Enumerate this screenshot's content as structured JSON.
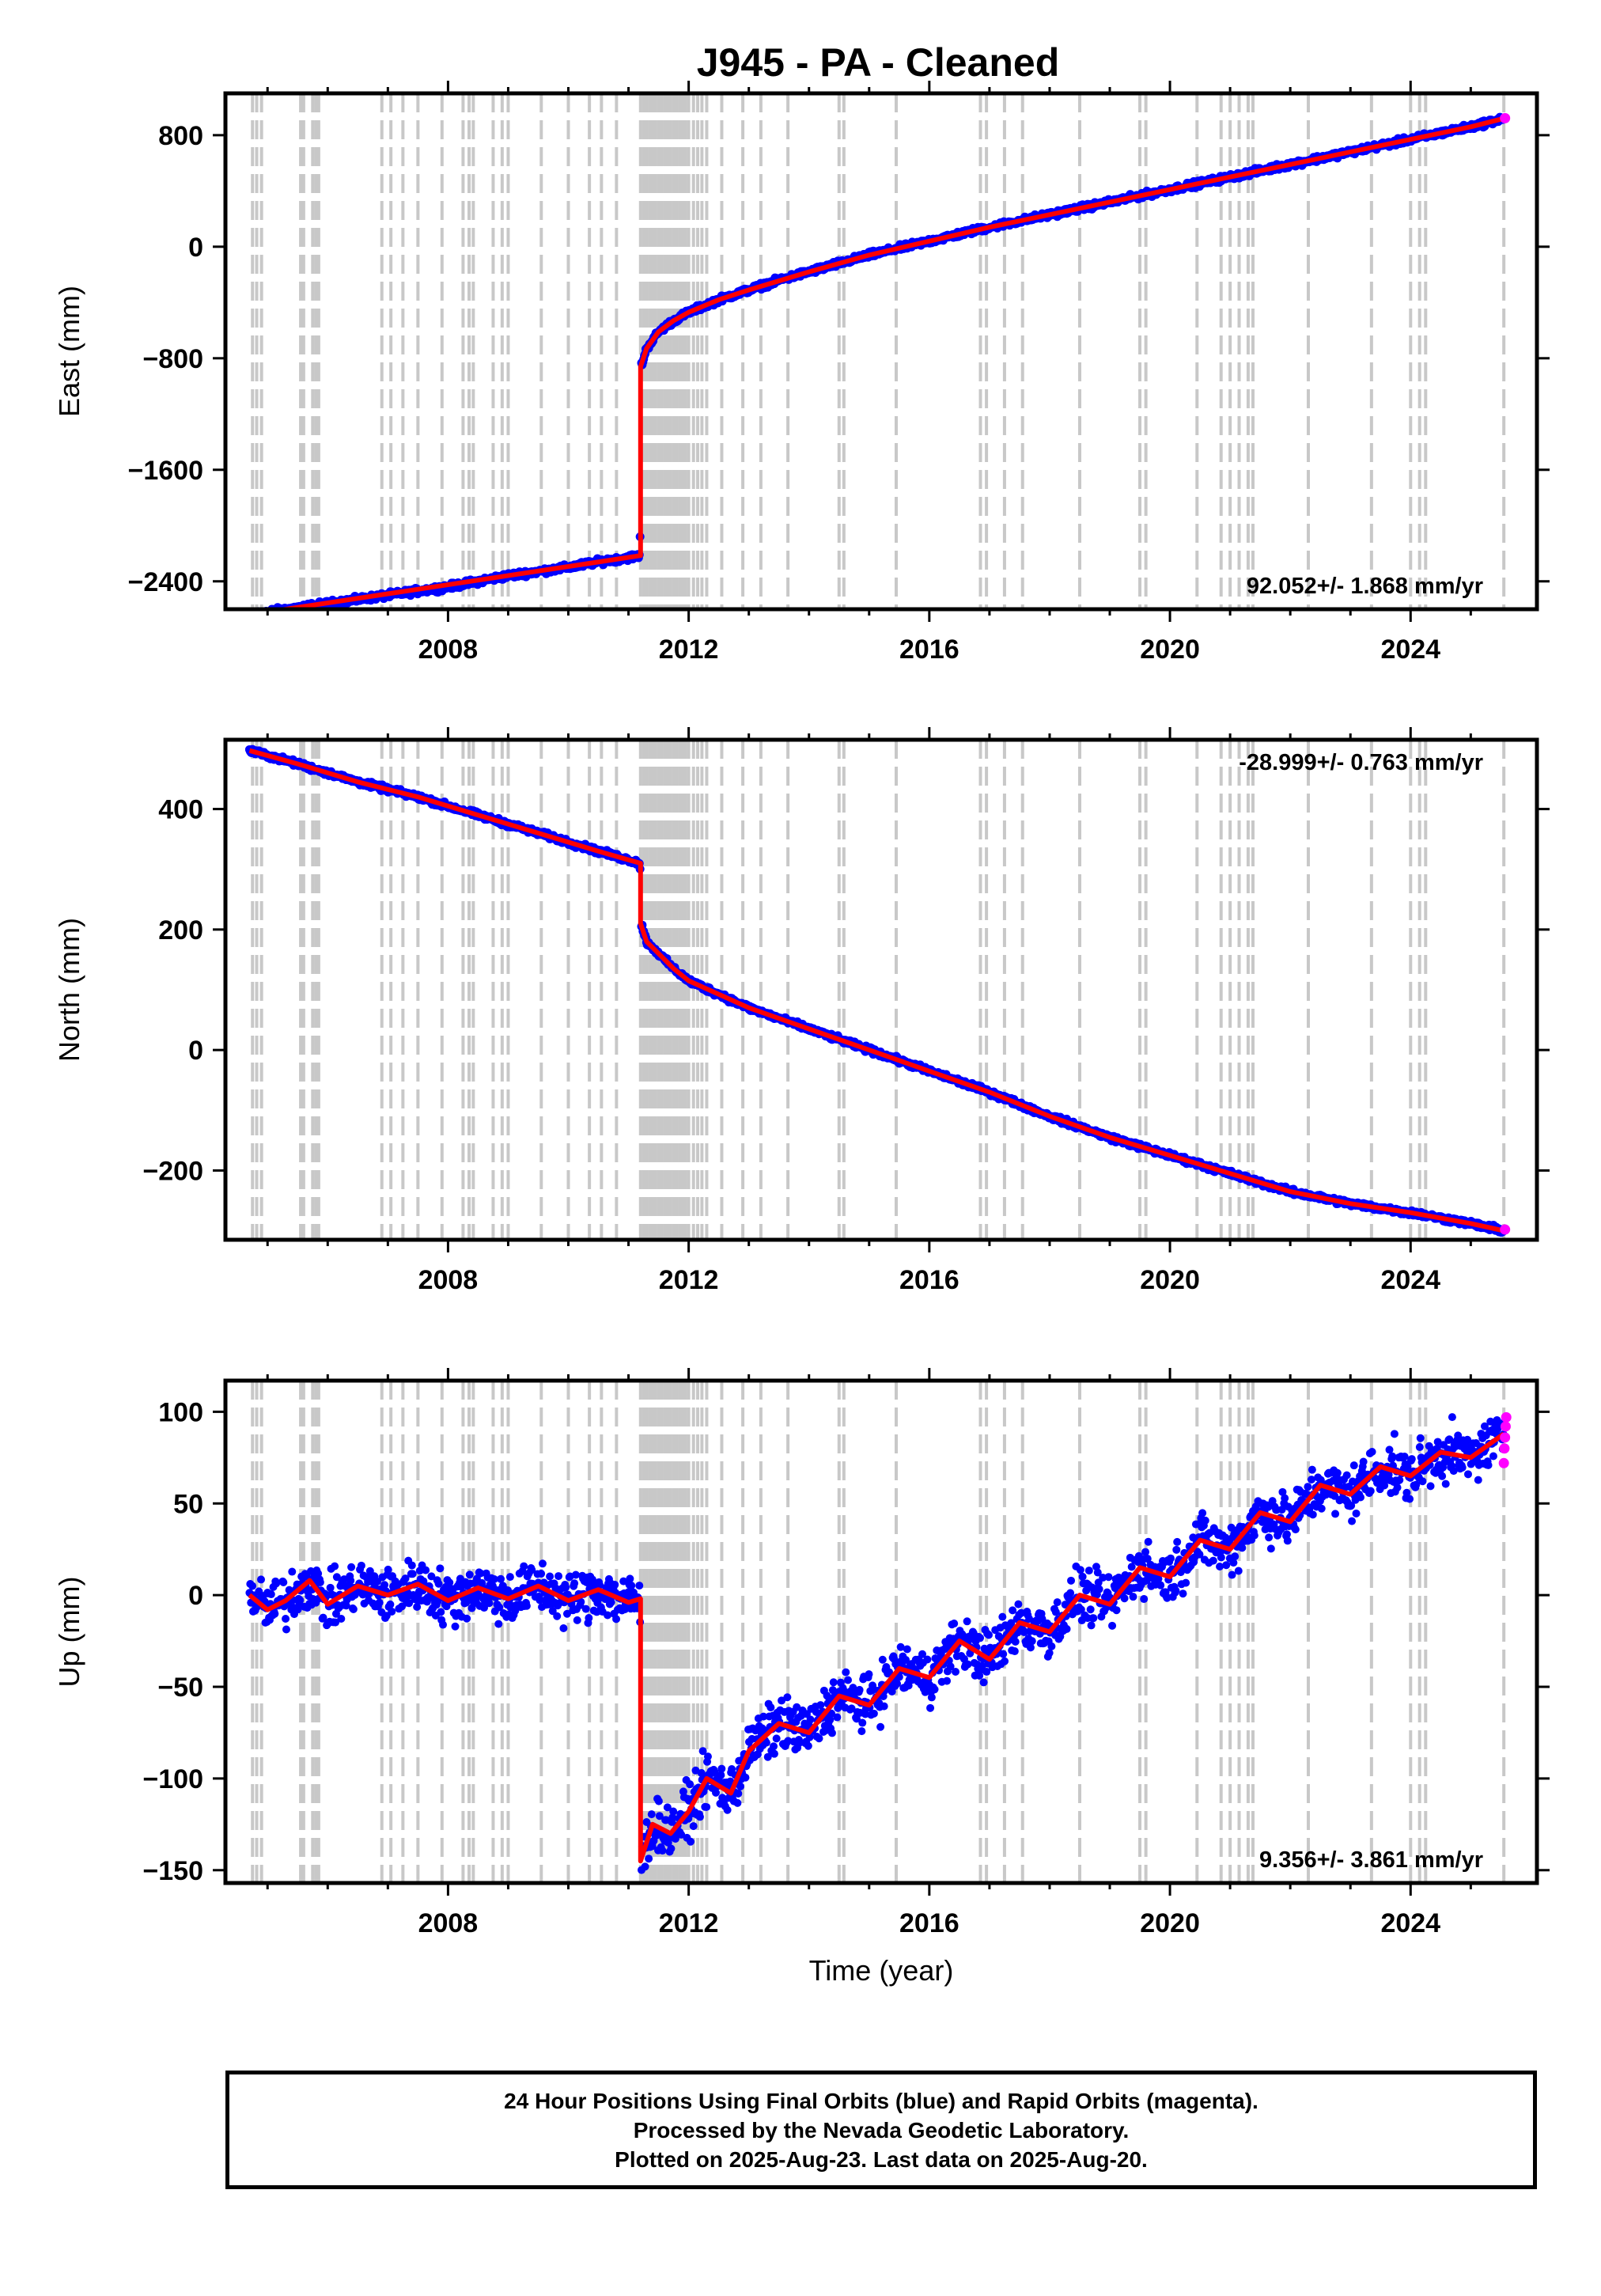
{
  "page": {
    "title": "J945  - PA - Cleaned"
  },
  "colors": {
    "final_orbits": "#0000ff",
    "rapid_orbits": "#ff00ff",
    "model_line": "#ff0000",
    "event_lines": "#c8c8c8",
    "frame": "#000000"
  },
  "chart_data": [
    {
      "type": "scatter",
      "panel": "east",
      "ylabel": "East (mm)",
      "xlabel": "",
      "xlim": [
        2004.3,
        2026.1
      ],
      "ylim": [
        -2600,
        1100
      ],
      "xticks": [
        2008,
        2012,
        2016,
        2020,
        2024
      ],
      "yticks": [
        -2400,
        -1600,
        -800,
        0,
        800
      ],
      "ytick_labels": [
        "−2400",
        "−1600",
        "−800",
        "0",
        "800"
      ],
      "rate_label": "92.052+/- 1.868 mm/yr",
      "rate_position": "bottom-right",
      "grid": false,
      "series": [
        {
          "style": "points",
          "color_key": "final_orbits",
          "x": [
            2004.7,
            2005.0,
            2005.5,
            2006.0,
            2006.5,
            2007.0,
            2007.5,
            2008.0,
            2008.5,
            2009.0,
            2009.5,
            2010.0,
            2010.5,
            2011.0,
            2011.19,
            2011.21,
            2011.3,
            2011.5,
            2011.75,
            2012.0,
            2012.5,
            2013.0,
            2013.5,
            2014.0,
            2015.0,
            2016.0,
            2017.0,
            2018.0,
            2019.0,
            2020.0,
            2021.0,
            2022.0,
            2023.0,
            2024.0,
            2025.0,
            2025.55
          ],
          "y": [
            -2640,
            -2620,
            -2590,
            -2560,
            -2530,
            -2500,
            -2470,
            -2440,
            -2400,
            -2360,
            -2330,
            -2300,
            -2260,
            -2230,
            -2215,
            -860,
            -730,
            -610,
            -530,
            -470,
            -380,
            -310,
            -240,
            -180,
            -60,
            40,
            140,
            230,
            320,
            410,
            500,
            590,
            680,
            770,
            860,
            920
          ]
        },
        {
          "style": "line",
          "color_key": "model_line",
          "x": [
            2004.7,
            2011.2,
            2011.2,
            2011.3,
            2011.5,
            2011.75,
            2012.0,
            2012.5,
            2013.0,
            2014.0,
            2015.0,
            2016.0,
            2017.0,
            2018.0,
            2019.0,
            2020.0,
            2021.0,
            2022.0,
            2023.0,
            2024.0,
            2025.0,
            2025.55
          ],
          "y": [
            -2640,
            -2215,
            -860,
            -730,
            -610,
            -530,
            -470,
            -380,
            -310,
            -180,
            -60,
            40,
            140,
            230,
            320,
            410,
            500,
            590,
            680,
            770,
            860,
            920
          ]
        },
        {
          "style": "points",
          "color_key": "rapid_orbits",
          "x": [
            2025.57
          ],
          "y": [
            922
          ]
        }
      ]
    },
    {
      "type": "scatter",
      "panel": "north",
      "ylabel": "North (mm)",
      "xlabel": "",
      "xlim": [
        2004.3,
        2026.1
      ],
      "ylim": [
        -315,
        515
      ],
      "xticks": [
        2008,
        2012,
        2016,
        2020,
        2024
      ],
      "yticks": [
        -200,
        0,
        200,
        400
      ],
      "ytick_labels": [
        "−200",
        "0",
        "200",
        "400"
      ],
      "rate_label": "-28.999+/- 0.763 mm/yr",
      "rate_position": "top-right",
      "grid": false,
      "series": [
        {
          "style": "points",
          "color_key": "final_orbits",
          "x": [
            2004.7,
            2005.5,
            2006.5,
            2007.5,
            2008.5,
            2009.5,
            2010.5,
            2011.19,
            2011.21,
            2011.3,
            2011.5,
            2011.75,
            2012.0,
            2013.0,
            2014.0,
            2015.0,
            2016.0,
            2017.0,
            2018.0,
            2019.0,
            2020.0,
            2021.0,
            2022.0,
            2023.0,
            2024.0,
            2025.0,
            2025.55
          ],
          "y": [
            497,
            475,
            445,
            420,
            390,
            360,
            330,
            310,
            210,
            180,
            160,
            135,
            115,
            70,
            35,
            0,
            -35,
            -70,
            -110,
            -145,
            -175,
            -205,
            -235,
            -255,
            -270,
            -288,
            -300
          ]
        },
        {
          "style": "line",
          "color_key": "model_line",
          "x": [
            2004.7,
            2005.5,
            2006.5,
            2007.5,
            2008.5,
            2009.5,
            2010.5,
            2011.2,
            2011.2,
            2011.3,
            2011.5,
            2011.75,
            2012.0,
            2013.0,
            2014.0,
            2015.0,
            2016.0,
            2017.0,
            2018.0,
            2019.0,
            2020.0,
            2021.0,
            2022.0,
            2023.0,
            2024.0,
            2025.0,
            2025.55
          ],
          "y": [
            497,
            475,
            445,
            420,
            390,
            360,
            330,
            310,
            210,
            180,
            160,
            135,
            115,
            70,
            35,
            0,
            -35,
            -70,
            -110,
            -145,
            -175,
            -205,
            -235,
            -255,
            -270,
            -288,
            -300
          ]
        },
        {
          "style": "points",
          "color_key": "rapid_orbits",
          "x": [
            2025.57
          ],
          "y": [
            -298
          ]
        }
      ]
    },
    {
      "type": "scatter",
      "panel": "up",
      "ylabel": "Up (mm)",
      "xlabel": "Time (year)",
      "xlim": [
        2004.3,
        2026.1
      ],
      "ylim": [
        -157,
        117
      ],
      "xticks": [
        2008,
        2012,
        2016,
        2020,
        2024
      ],
      "yticks": [
        -150,
        -100,
        -50,
        0,
        50,
        100
      ],
      "ytick_labels": [
        "−150",
        "−100",
        "−50",
        "0",
        "50",
        "100"
      ],
      "rate_label": "9.356+/- 3.861 mm/yr",
      "rate_position": "bottom-right",
      "grid": false,
      "series": [
        {
          "style": "points",
          "color_key": "final_orbits",
          "x": [
            2004.7,
            2005.0,
            2005.3,
            2005.7,
            2006.0,
            2006.5,
            2007.0,
            2007.5,
            2008.0,
            2008.5,
            2009.0,
            2009.5,
            2010.0,
            2010.5,
            2011.0,
            2011.19,
            2011.21,
            2011.4,
            2011.7,
            2012.0,
            2012.3,
            2012.7,
            2013.0,
            2013.5,
            2014.0,
            2014.5,
            2015.0,
            2015.5,
            2016.0,
            2016.5,
            2017.0,
            2017.5,
            2018.0,
            2018.5,
            2019.0,
            2019.5,
            2020.0,
            2020.5,
            2021.0,
            2021.5,
            2022.0,
            2022.5,
            2023.0,
            2023.5,
            2024.0,
            2024.5,
            2025.0,
            2025.55
          ],
          "y": [
            0,
            -8,
            -3,
            8,
            -5,
            5,
            0,
            6,
            -3,
            4,
            -2,
            5,
            -3,
            3,
            -4,
            -2,
            -145,
            -125,
            -130,
            -118,
            -100,
            -108,
            -85,
            -70,
            -75,
            -55,
            -60,
            -40,
            -45,
            -25,
            -35,
            -15,
            -20,
            0,
            -5,
            15,
            10,
            30,
            25,
            45,
            40,
            60,
            55,
            70,
            65,
            78,
            75,
            88
          ]
        },
        {
          "style": "line",
          "color_key": "model_line",
          "x": [
            2004.7,
            2005.0,
            2005.3,
            2005.7,
            2006.0,
            2006.5,
            2007.0,
            2007.5,
            2008.0,
            2008.5,
            2009.0,
            2009.5,
            2010.0,
            2010.5,
            2011.0,
            2011.2,
            2011.2,
            2011.4,
            2011.7,
            2012.0,
            2012.3,
            2012.7,
            2013.0,
            2013.5,
            2014.0,
            2014.5,
            2015.0,
            2015.5,
            2016.0,
            2016.5,
            2017.0,
            2017.5,
            2018.0,
            2018.5,
            2019.0,
            2019.5,
            2020.0,
            2020.5,
            2021.0,
            2021.5,
            2022.0,
            2022.5,
            2023.0,
            2023.5,
            2024.0,
            2024.5,
            2025.0,
            2025.55
          ],
          "y": [
            0,
            -8,
            -3,
            8,
            -5,
            5,
            0,
            6,
            -3,
            4,
            -2,
            5,
            -3,
            3,
            -4,
            -2,
            -145,
            -125,
            -130,
            -118,
            -100,
            -108,
            -85,
            -70,
            -75,
            -55,
            -60,
            -40,
            -45,
            -25,
            -35,
            -15,
            -20,
            0,
            -5,
            15,
            10,
            30,
            25,
            45,
            40,
            60,
            55,
            70,
            65,
            78,
            75,
            88
          ]
        },
        {
          "style": "points",
          "color_key": "rapid_orbits",
          "x": [
            2025.55,
            2025.56,
            2025.57,
            2025.58,
            2025.59
          ],
          "y": [
            72,
            80,
            86,
            92,
            97
          ]
        }
      ]
    }
  ],
  "event_lines": [
    2004.75,
    2004.82,
    2004.9,
    2005.55,
    2005.6,
    2005.75,
    2005.8,
    2005.85,
    2006.9,
    2007.05,
    2007.25,
    2007.5,
    2007.9,
    2008.25,
    2008.35,
    2008.42,
    2008.75,
    2008.9,
    2009.0,
    2009.55,
    2010.0,
    2010.35,
    2010.55,
    2010.8,
    2011.2,
    2011.25,
    2011.3,
    2011.35,
    2011.4,
    2011.45,
    2011.5,
    2011.55,
    2011.6,
    2011.65,
    2011.7,
    2011.75,
    2011.8,
    2011.85,
    2011.9,
    2011.95,
    2012.0,
    2012.08,
    2012.15,
    2012.22,
    2012.3,
    2012.55,
    2012.9,
    2013.2,
    2013.65,
    2014.5,
    2014.58,
    2015.45,
    2016.85,
    2016.95,
    2017.25,
    2017.55,
    2018.5,
    2019.5,
    2019.6,
    2020.45,
    2020.85,
    2021.0,
    2021.15,
    2021.3,
    2021.38,
    2022.3,
    2023.35,
    2024.0,
    2024.15,
    2024.25,
    2025.55
  ],
  "footer": {
    "line1": "24 Hour Positions Using Final Orbits (blue) and Rapid Orbits (magenta).",
    "line2": "Processed by the Nevada Geodetic Laboratory.",
    "line3": "Plotted on 2025-Aug-23. Last data on 2025-Aug-20."
  }
}
